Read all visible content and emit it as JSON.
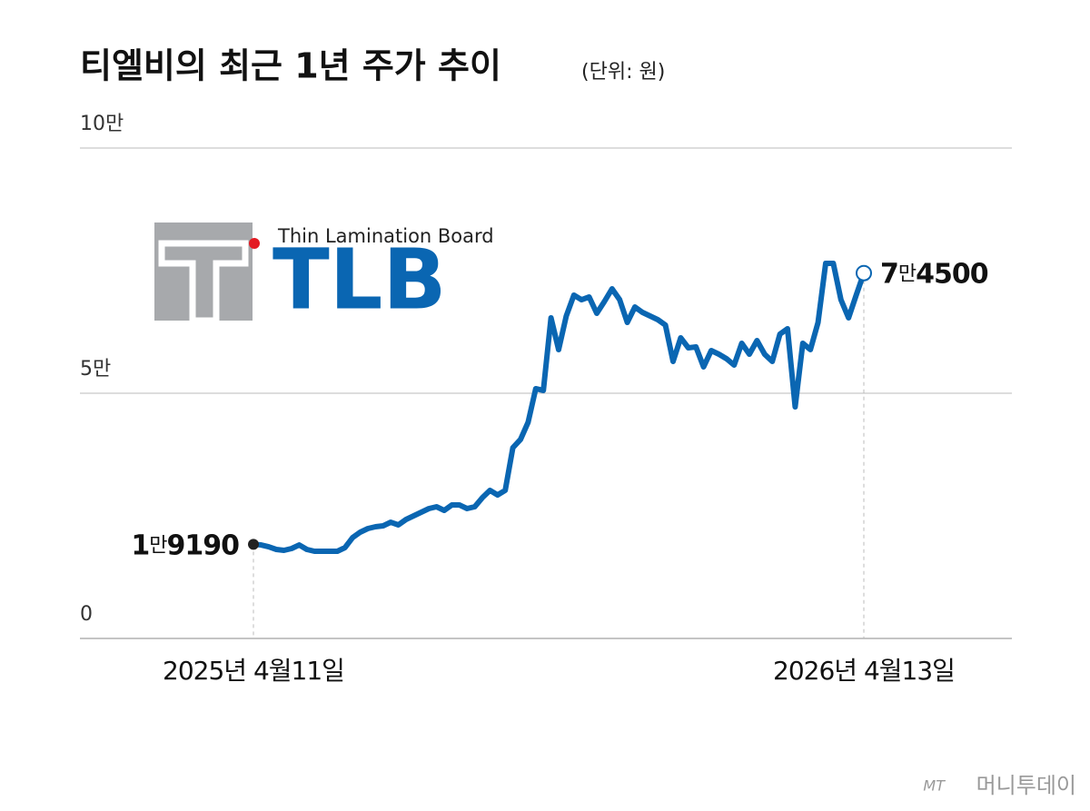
{
  "chart_data": {
    "type": "line",
    "title": "티엘비의 최근 1년 주가 추이",
    "subtitle": "(단위: 원)",
    "categories": [
      "2025년 4월11일",
      null,
      null,
      null,
      null,
      null,
      null,
      null,
      null,
      null,
      null,
      null,
      null,
      null,
      null,
      null,
      null,
      null,
      null,
      null,
      null,
      null,
      null,
      null,
      null,
      null,
      null,
      null,
      null,
      null,
      null,
      null,
      null,
      null,
      null,
      null,
      null,
      null,
      null,
      null,
      null,
      null,
      null,
      null,
      null,
      null,
      null,
      null,
      null,
      null,
      null,
      null,
      null,
      null,
      null,
      null,
      null,
      null,
      null,
      null,
      null,
      null,
      null,
      null,
      null,
      null,
      null,
      null,
      null,
      null,
      null,
      null,
      null,
      null,
      null,
      null,
      null,
      null,
      null,
      null,
      "2026년 4월13일"
    ],
    "series": [
      {
        "color": "#0a66b2",
        "values": [
          19190,
          19070,
          18700,
          18150,
          17960,
          18330,
          19070,
          18150,
          17780,
          17780,
          17780,
          17780,
          18520,
          20560,
          21670,
          22410,
          22780,
          22960,
          23700,
          23150,
          24260,
          25000,
          25740,
          26480,
          26850,
          26110,
          27220,
          27220,
          26480,
          26850,
          28700,
          30190,
          29260,
          30190,
          38890,
          40560,
          44070,
          50930,
          50560,
          65370,
          58890,
          65740,
          70000,
          69070,
          69630,
          66300,
          68700,
          71300,
          69070,
          64440,
          67590,
          66480,
          65740,
          65000,
          63890,
          56480,
          61300,
          59260,
          59440,
          55370,
          58700,
          57960,
          57040,
          55740,
          60190,
          57960,
          60740,
          57960,
          56480,
          62040,
          63150,
          47220,
          60190,
          58890,
          64440,
          76480,
          76480,
          69070,
          65370,
          70000,
          74500
        ],
        "value_labels": [
          "1만9190",
          null,
          null,
          null,
          null,
          null,
          null,
          null,
          null,
          null,
          null,
          null,
          null,
          null,
          null,
          null,
          null,
          null,
          null,
          null,
          null,
          null,
          null,
          null,
          null,
          null,
          null,
          null,
          null,
          null,
          null,
          null,
          null,
          null,
          null,
          null,
          null,
          null,
          null,
          null,
          null,
          null,
          null,
          null,
          null,
          null,
          null,
          null,
          null,
          null,
          null,
          null,
          null,
          null,
          null,
          null,
          null,
          null,
          null,
          null,
          null,
          null,
          null,
          null,
          null,
          null,
          null,
          null,
          null,
          null,
          null,
          null,
          null,
          null,
          null,
          null,
          null,
          null,
          null,
          null,
          "7만4500"
        ]
      }
    ],
    "ylim": [
      0,
      100000
    ],
    "yticks": [
      0,
      {
        "value": 50000,
        "label": "5만"
      },
      {
        "value": 100000,
        "label": "10만"
      }
    ],
    "grid": true
  },
  "logo": {
    "tagline": "Thin Lamination Board",
    "name": "TLB"
  },
  "source": {
    "mark": "MT",
    "name": "머니투데이"
  }
}
